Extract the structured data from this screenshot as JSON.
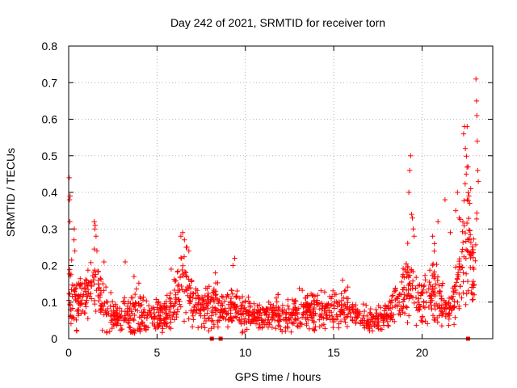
{
  "chart_data": {
    "type": "scatter",
    "title": "Day 242 of 2021, SRMTID for receiver torn",
    "xlabel": "GPS time / hours",
    "ylabel": "SRMTID / TECUs",
    "xlim": [
      0,
      24
    ],
    "ylim": [
      0,
      0.8
    ],
    "xticks": [
      "0",
      "5",
      "10",
      "15",
      "20"
    ],
    "xtick_values": [
      0,
      5,
      10,
      15,
      20
    ],
    "yticks": [
      "0",
      "0.1",
      "0.2",
      "0.3",
      "0.4",
      "0.5",
      "0.6",
      "0.7",
      "0.8"
    ],
    "ytick_values": [
      0,
      0.1,
      0.2,
      0.3,
      0.4,
      0.5,
      0.6,
      0.7,
      0.8
    ],
    "grid": true,
    "marker": "+",
    "color": "#ff0000",
    "series_description": "SRMTID values per observation; elevated near 0h (up to ~0.44), 1.5h (~0.32), 6.5h (~0.29), 19.4h (~0.50) and 22.5-23h (up to ~0.71); baseline ~0.02-0.15",
    "envelope": {
      "x": [
        0,
        0.15,
        0.3,
        0.6,
        1.0,
        1.3,
        1.5,
        1.7,
        2.0,
        2.5,
        3.0,
        3.3,
        3.7,
        4.0,
        4.5,
        5.0,
        5.5,
        6.0,
        6.3,
        6.5,
        6.8,
        7.0,
        7.5,
        8.0,
        8.3,
        8.7,
        9.0,
        9.5,
        10.0,
        10.5,
        11.0,
        11.5,
        12.0,
        12.5,
        13.0,
        13.5,
        14.0,
        14.5,
        15.0,
        15.5,
        16.0,
        16.5,
        17.0,
        17.5,
        18.0,
        18.5,
        19.0,
        19.3,
        19.5,
        19.7,
        20.0,
        20.3,
        20.6,
        20.9,
        21.2,
        21.5,
        21.8,
        22.0,
        22.2,
        22.4,
        22.6,
        22.8,
        23.0,
        23.1
      ],
      "center": [
        0.14,
        0.12,
        0.1,
        0.1,
        0.13,
        0.15,
        0.16,
        0.12,
        0.09,
        0.07,
        0.06,
        0.06,
        0.06,
        0.07,
        0.06,
        0.06,
        0.07,
        0.09,
        0.13,
        0.17,
        0.14,
        0.1,
        0.08,
        0.09,
        0.1,
        0.09,
        0.08,
        0.08,
        0.07,
        0.06,
        0.06,
        0.06,
        0.07,
        0.06,
        0.07,
        0.08,
        0.08,
        0.07,
        0.08,
        0.09,
        0.07,
        0.06,
        0.05,
        0.05,
        0.07,
        0.1,
        0.13,
        0.15,
        0.14,
        0.12,
        0.1,
        0.12,
        0.14,
        0.11,
        0.09,
        0.07,
        0.1,
        0.14,
        0.2,
        0.26,
        0.3,
        0.2,
        0.24,
        0.26
      ],
      "spread": [
        0.06,
        0.06,
        0.05,
        0.04,
        0.04,
        0.05,
        0.06,
        0.05,
        0.04,
        0.03,
        0.03,
        0.04,
        0.04,
        0.04,
        0.03,
        0.03,
        0.03,
        0.04,
        0.05,
        0.06,
        0.05,
        0.04,
        0.03,
        0.03,
        0.04,
        0.03,
        0.03,
        0.03,
        0.03,
        0.02,
        0.02,
        0.03,
        0.03,
        0.03,
        0.03,
        0.03,
        0.03,
        0.03,
        0.03,
        0.04,
        0.03,
        0.02,
        0.02,
        0.02,
        0.03,
        0.04,
        0.05,
        0.06,
        0.05,
        0.04,
        0.04,
        0.05,
        0.06,
        0.05,
        0.04,
        0.03,
        0.04,
        0.06,
        0.08,
        0.1,
        0.12,
        0.07,
        0.09,
        0.1
      ]
    },
    "spikes": [
      [
        0.03,
        0.44
      ],
      [
        0.05,
        0.38
      ],
      [
        0.07,
        0.32
      ],
      [
        0.08,
        0.39
      ],
      [
        0.3,
        0.27
      ],
      [
        0.32,
        0.3
      ],
      [
        0.35,
        0.24
      ],
      [
        1.45,
        0.32
      ],
      [
        1.48,
        0.3
      ],
      [
        1.5,
        0.31
      ],
      [
        1.55,
        0.28
      ],
      [
        1.6,
        0.24
      ],
      [
        2.0,
        0.21
      ],
      [
        3.2,
        0.21
      ],
      [
        3.7,
        0.17
      ],
      [
        5.8,
        0.19
      ],
      [
        6.35,
        0.28
      ],
      [
        6.45,
        0.29
      ],
      [
        6.55,
        0.27
      ],
      [
        6.65,
        0.25
      ],
      [
        6.8,
        0.24
      ],
      [
        8.3,
        0.18
      ],
      [
        9.4,
        0.22
      ],
      [
        9.3,
        0.2
      ],
      [
        15.5,
        0.16
      ],
      [
        19.25,
        0.4
      ],
      [
        19.3,
        0.46
      ],
      [
        19.35,
        0.5
      ],
      [
        19.4,
        0.34
      ],
      [
        19.45,
        0.33
      ],
      [
        19.5,
        0.3
      ],
      [
        19.55,
        0.28
      ],
      [
        20.6,
        0.28
      ],
      [
        20.7,
        0.26
      ],
      [
        20.9,
        0.32
      ],
      [
        21.3,
        0.38
      ],
      [
        21.6,
        0.29
      ],
      [
        21.9,
        0.35
      ],
      [
        22.0,
        0.4
      ],
      [
        22.1,
        0.33
      ],
      [
        22.35,
        0.56
      ],
      [
        22.4,
        0.58
      ],
      [
        22.45,
        0.52
      ],
      [
        22.5,
        0.45
      ],
      [
        22.55,
        0.58
      ],
      [
        22.6,
        0.47
      ],
      [
        22.65,
        0.39
      ],
      [
        22.7,
        0.37
      ],
      [
        22.75,
        0.41
      ],
      [
        23.05,
        0.71
      ],
      [
        23.08,
        0.65
      ],
      [
        23.1,
        0.61
      ],
      [
        23.12,
        0.54
      ],
      [
        23.15,
        0.46
      ],
      [
        23.18,
        0.43
      ],
      [
        22.9,
        0.14
      ],
      [
        22.95,
        0.12
      ]
    ],
    "zero_markers_x": [
      8.1,
      8.6,
      22.6
    ]
  }
}
